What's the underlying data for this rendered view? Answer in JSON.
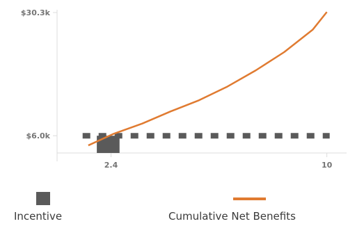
{
  "chart_data": {
    "type": "bar+line",
    "title": "",
    "xlabel": "",
    "ylabel": "",
    "x_ticks": [
      {
        "value": 2.4,
        "label": "2.4"
      },
      {
        "value": 10,
        "label": "10"
      }
    ],
    "y_ticks": [
      {
        "value": 6.0,
        "label": "$6.0k"
      },
      {
        "value": 30.3,
        "label": "$30.3k"
      }
    ],
    "xlim": [
      0.5,
      10.5
    ],
    "ylim": [
      2.6,
      30.3
    ],
    "units": "$k",
    "series": [
      {
        "name": "Incentive",
        "kind": "bar",
        "color": "#5a5a5a",
        "bar": {
          "x_center": 2.3,
          "width": 0.8,
          "value": 6.0
        },
        "reference_line": {
          "value": 6.0,
          "x_start": 1.4,
          "x_end": 10.1,
          "style": "dashed"
        }
      },
      {
        "name": "Cumulative Net Benefits",
        "kind": "line",
        "color": "#e07b31",
        "x": [
          1.6,
          2.5,
          3.5,
          4.5,
          5.5,
          6.5,
          7.5,
          8.5,
          9.5,
          10.0
        ],
        "values": [
          4.1,
          6.4,
          8.4,
          10.8,
          13.0,
          15.7,
          18.9,
          22.5,
          26.9,
          30.4
        ]
      }
    ],
    "legend": {
      "position": "bottom",
      "items": [
        {
          "label": "Incentive",
          "swatch": "box",
          "color": "#5a5a5a"
        },
        {
          "label": "Cumulative Net Benefits",
          "swatch": "line",
          "color": "#e07b31"
        }
      ]
    },
    "grid": false
  }
}
